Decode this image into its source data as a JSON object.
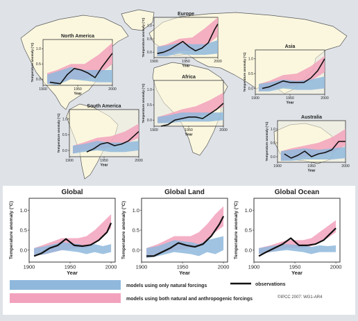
{
  "colors": {
    "natural": "#8fb8dc",
    "both": "#f2a2bc",
    "overlap": "#b58fbd",
    "observations": "#111111",
    "land": "#fbf7df",
    "ocean": "#dfe3e8"
  },
  "chart_data": [
    {
      "type": "line",
      "title": "North America",
      "xlabel": "Year",
      "ylabel": "Temperature anomaly (°C)",
      "xlim": [
        1900,
        2000
      ],
      "ylim": [
        -0.2,
        1.3
      ],
      "x_ticks": [
        "1900",
        "1950",
        "2000"
      ],
      "y_ticks": [
        "0.0",
        "0.5",
        "1.0"
      ],
      "observations": {
        "x": [
          1910,
          1925,
          1935,
          1945,
          1955,
          1965,
          1975,
          1985,
          1995,
          2000
        ],
        "y": [
          -0.1,
          -0.15,
          0.15,
          0.35,
          0.3,
          0.2,
          0.05,
          0.4,
          0.7,
          0.85
        ]
      },
      "natural_band": {
        "x": [
          1906,
          1920,
          1940,
          1960,
          1980,
          2000
        ],
        "lower": [
          -0.15,
          -0.2,
          0.0,
          -0.05,
          -0.1,
          -0.1
        ],
        "upper": [
          0.15,
          0.25,
          0.4,
          0.3,
          0.3,
          0.3
        ]
      },
      "combined_band": {
        "x": [
          1906,
          1920,
          1940,
          1960,
          1980,
          2000
        ],
        "lower": [
          -0.15,
          -0.15,
          0.0,
          0.0,
          0.15,
          0.5
        ],
        "upper": [
          0.2,
          0.3,
          0.5,
          0.5,
          0.8,
          1.2
        ]
      }
    },
    {
      "type": "line",
      "title": "Europe",
      "xlabel": "Year",
      "ylabel": "Temperature anomaly (°C)",
      "xlim": [
        1900,
        2000
      ],
      "ylim": [
        -0.2,
        1.3
      ],
      "x_ticks": [
        "1900",
        "1950",
        "2000"
      ],
      "y_ticks": [
        "0.0",
        "0.5",
        "1.0"
      ],
      "observations": {
        "x": [
          1905,
          1915,
          1925,
          1935,
          1945,
          1955,
          1965,
          1975,
          1985,
          1995,
          2000
        ],
        "y": [
          -0.05,
          0.0,
          0.1,
          0.25,
          0.4,
          0.2,
          0.05,
          0.15,
          0.35,
          0.85,
          1.05
        ]
      },
      "natural_band": {
        "x": [
          1905,
          1920,
          1940,
          1960,
          1980,
          2000
        ],
        "lower": [
          -0.15,
          -0.15,
          -0.05,
          -0.1,
          -0.1,
          -0.05
        ],
        "upper": [
          0.2,
          0.25,
          0.35,
          0.3,
          0.3,
          0.45
        ]
      },
      "combined_band": {
        "x": [
          1905,
          1920,
          1940,
          1960,
          1980,
          2000
        ],
        "lower": [
          -0.15,
          -0.1,
          0.05,
          0.05,
          0.2,
          0.6
        ],
        "upper": [
          0.2,
          0.3,
          0.5,
          0.55,
          0.9,
          1.3
        ]
      }
    },
    {
      "type": "line",
      "title": "Asia",
      "xlabel": "Year",
      "ylabel": "Temperature anomaly (°C)",
      "xlim": [
        1900,
        2000
      ],
      "ylim": [
        -0.2,
        1.3
      ],
      "x_ticks": [
        "1900",
        "1950",
        "2000"
      ],
      "y_ticks": [
        "0.0",
        "0.5",
        "1.0"
      ],
      "observations": {
        "x": [
          1910,
          1920,
          1930,
          1940,
          1950,
          1960,
          1970,
          1980,
          1990,
          2000
        ],
        "y": [
          0.0,
          0.05,
          0.15,
          0.25,
          0.2,
          0.2,
          0.2,
          0.35,
          0.6,
          1.0
        ]
      },
      "natural_band": {
        "x": [
          1905,
          1920,
          1940,
          1960,
          1980,
          2000
        ],
        "lower": [
          -0.1,
          -0.1,
          0.0,
          -0.05,
          -0.05,
          0.0
        ],
        "upper": [
          0.15,
          0.2,
          0.3,
          0.25,
          0.3,
          0.4
        ]
      },
      "combined_band": {
        "x": [
          1905,
          1920,
          1940,
          1960,
          1980,
          2000
        ],
        "lower": [
          -0.1,
          -0.05,
          0.05,
          0.1,
          0.25,
          0.55
        ],
        "upper": [
          0.15,
          0.25,
          0.45,
          0.5,
          0.75,
          1.1
        ]
      }
    },
    {
      "type": "line",
      "title": "Africa",
      "xlabel": "Year",
      "ylabel": "Temperature anomaly (°C)",
      "xlim": [
        1900,
        2000
      ],
      "ylim": [
        -0.2,
        1.3
      ],
      "x_ticks": [
        "1900",
        "1950",
        "2000"
      ],
      "y_ticks": [
        "0.0",
        "0.5",
        "1.0"
      ],
      "observations": {
        "x": [
          1910,
          1920,
          1930,
          1940,
          1950,
          1960,
          1970,
          1980,
          1990,
          2000
        ],
        "y": [
          -0.2,
          -0.15,
          0.0,
          0.05,
          0.1,
          0.1,
          0.05,
          0.2,
          0.35,
          0.55
        ]
      },
      "natural_band": {
        "x": [
          1905,
          1920,
          1940,
          1960,
          1980,
          2000
        ],
        "lower": [
          -0.1,
          -0.1,
          -0.05,
          -0.05,
          -0.05,
          0.0
        ],
        "upper": [
          0.1,
          0.15,
          0.25,
          0.25,
          0.25,
          0.25
        ]
      },
      "combined_band": {
        "x": [
          1905,
          1920,
          1940,
          1960,
          1980,
          2000
        ],
        "lower": [
          -0.1,
          -0.05,
          0.0,
          0.1,
          0.2,
          0.45
        ],
        "upper": [
          0.1,
          0.2,
          0.35,
          0.45,
          0.65,
          0.9
        ]
      }
    },
    {
      "type": "line",
      "title": "South America",
      "xlabel": "Year",
      "ylabel": "Temperature anomaly (°C)",
      "xlim": [
        1900,
        2000
      ],
      "ylim": [
        -0.2,
        1.3
      ],
      "x_ticks": [
        "1900",
        "1950",
        "2000"
      ],
      "y_ticks": [
        "0.0",
        "0.5",
        "1.0"
      ],
      "observations": {
        "x": [
          1925,
          1935,
          1945,
          1955,
          1965,
          1975,
          1985,
          1995,
          2000
        ],
        "y": [
          -0.05,
          0.05,
          0.2,
          0.25,
          0.15,
          0.2,
          0.3,
          0.5,
          0.6
        ]
      },
      "natural_band": {
        "x": [
          1905,
          1920,
          1940,
          1960,
          1980,
          2000
        ],
        "lower": [
          -0.1,
          -0.05,
          0.0,
          -0.05,
          -0.05,
          0.0
        ],
        "upper": [
          0.15,
          0.2,
          0.3,
          0.25,
          0.25,
          0.3
        ]
      },
      "combined_band": {
        "x": [
          1905,
          1920,
          1940,
          1960,
          1980,
          2000
        ],
        "lower": [
          -0.1,
          0.0,
          0.05,
          0.1,
          0.2,
          0.4
        ],
        "upper": [
          0.15,
          0.25,
          0.4,
          0.45,
          0.6,
          0.85
        ]
      }
    },
    {
      "type": "line",
      "title": "Australia",
      "xlabel": "Year",
      "ylabel": "Temperature anomaly (°C)",
      "xlim": [
        1900,
        2000
      ],
      "ylim": [
        -0.2,
        1.3
      ],
      "x_ticks": [
        "1900",
        "1950",
        "2000"
      ],
      "y_ticks": [
        "0.0",
        "0.5",
        "1.0"
      ],
      "observations": {
        "x": [
          1910,
          1920,
          1930,
          1940,
          1950,
          1960,
          1970,
          1980,
          1990,
          2000
        ],
        "y": [
          0.1,
          -0.05,
          0.05,
          0.2,
          0.0,
          0.1,
          0.15,
          0.25,
          0.55,
          0.55
        ]
      },
      "natural_band": {
        "x": [
          1905,
          1920,
          1940,
          1960,
          1980,
          2000
        ],
        "lower": [
          -0.15,
          -0.15,
          -0.1,
          -0.1,
          -0.1,
          -0.05
        ],
        "upper": [
          0.2,
          0.25,
          0.3,
          0.25,
          0.3,
          0.35
        ]
      },
      "combined_band": {
        "x": [
          1905,
          1920,
          1940,
          1960,
          1980,
          2000
        ],
        "lower": [
          -0.15,
          -0.1,
          0.0,
          0.05,
          0.15,
          0.4
        ],
        "upper": [
          0.2,
          0.3,
          0.4,
          0.5,
          0.7,
          1.0
        ]
      }
    },
    {
      "type": "line",
      "title": "Global",
      "xlabel": "Year",
      "ylabel": "Temperature anomaly (°C)",
      "xlim": [
        1900,
        2005
      ],
      "ylim": [
        -0.3,
        1.3
      ],
      "x_ticks": [
        "1900",
        "1950",
        "2000"
      ],
      "y_ticks": [
        "0.0",
        "0.5",
        "1.0"
      ],
      "observations": {
        "x": [
          1906,
          1915,
          1925,
          1935,
          1945,
          1955,
          1965,
          1975,
          1985,
          1995,
          2000
        ],
        "y": [
          -0.15,
          -0.08,
          0.05,
          0.12,
          0.28,
          0.12,
          0.1,
          0.13,
          0.25,
          0.45,
          0.68
        ]
      },
      "natural_band": {
        "x": [
          1906,
          1920,
          1940,
          1960,
          1970,
          1980,
          1990,
          2000
        ],
        "lower": [
          -0.15,
          -0.1,
          0.0,
          -0.05,
          -0.1,
          -0.05,
          -0.1,
          -0.05
        ],
        "upper": [
          0.05,
          0.1,
          0.2,
          0.15,
          0.1,
          0.15,
          0.1,
          0.15
        ]
      },
      "combined_band": {
        "x": [
          1906,
          1920,
          1940,
          1960,
          1970,
          1980,
          1990,
          2000
        ],
        "lower": [
          -0.15,
          -0.1,
          0.0,
          0.05,
          0.05,
          0.2,
          0.35,
          0.55
        ],
        "upper": [
          0.05,
          0.15,
          0.3,
          0.3,
          0.35,
          0.5,
          0.7,
          0.9
        ]
      }
    },
    {
      "type": "line",
      "title": "Global Land",
      "xlabel": "Year",
      "ylabel": "Temperature anomaly (°C)",
      "xlim": [
        1900,
        2005
      ],
      "ylim": [
        -0.3,
        1.3
      ],
      "x_ticks": [
        "1900",
        "1950",
        "2000"
      ],
      "y_ticks": [
        "0.0",
        "0.5",
        "1.0"
      ],
      "observations": {
        "x": [
          1906,
          1915,
          1925,
          1935,
          1945,
          1955,
          1965,
          1975,
          1985,
          1995,
          2000
        ],
        "y": [
          -0.15,
          -0.15,
          -0.05,
          0.05,
          0.18,
          0.12,
          0.08,
          0.15,
          0.35,
          0.65,
          0.85
        ]
      },
      "natural_band": {
        "x": [
          1906,
          1920,
          1940,
          1960,
          1970,
          1980,
          1990,
          2000
        ],
        "lower": [
          -0.2,
          -0.15,
          -0.05,
          -0.1,
          -0.15,
          -0.05,
          -0.1,
          0.0
        ],
        "upper": [
          0.05,
          0.1,
          0.25,
          0.2,
          0.15,
          0.25,
          0.3,
          0.35
        ]
      },
      "combined_band": {
        "x": [
          1906,
          1920,
          1940,
          1960,
          1970,
          1980,
          1990,
          2000
        ],
        "lower": [
          -0.2,
          -0.1,
          0.0,
          0.05,
          0.1,
          0.25,
          0.45,
          0.6
        ],
        "upper": [
          0.05,
          0.15,
          0.35,
          0.35,
          0.45,
          0.65,
          0.9,
          1.1
        ]
      }
    },
    {
      "type": "line",
      "title": "Global Ocean",
      "xlabel": "Year",
      "ylabel": "Temperature anomaly (°C)",
      "xlim": [
        1900,
        2005
      ],
      "ylim": [
        -0.3,
        1.3
      ],
      "x_ticks": [
        "1900",
        "1950",
        "2000"
      ],
      "y_ticks": [
        "0.0",
        "0.5",
        "1.0"
      ],
      "observations": {
        "x": [
          1906,
          1915,
          1925,
          1935,
          1945,
          1955,
          1965,
          1975,
          1985,
          1995,
          2000
        ],
        "y": [
          -0.15,
          -0.05,
          0.05,
          0.15,
          0.3,
          0.12,
          0.12,
          0.15,
          0.25,
          0.45,
          0.55
        ]
      },
      "natural_band": {
        "x": [
          1906,
          1920,
          1940,
          1960,
          1970,
          1980,
          1990,
          2000
        ],
        "lower": [
          -0.1,
          -0.05,
          0.0,
          -0.05,
          -0.1,
          -0.05,
          -0.05,
          -0.05
        ],
        "upper": [
          0.05,
          0.1,
          0.15,
          0.12,
          0.08,
          0.12,
          0.1,
          0.12
        ]
      },
      "combined_band": {
        "x": [
          1906,
          1920,
          1940,
          1960,
          1970,
          1980,
          1990,
          2000
        ],
        "lower": [
          -0.1,
          -0.05,
          0.05,
          0.05,
          0.1,
          0.2,
          0.3,
          0.45
        ],
        "upper": [
          0.05,
          0.12,
          0.25,
          0.25,
          0.3,
          0.45,
          0.6,
          0.75
        ]
      }
    }
  ],
  "legend": {
    "natural_label": "models using only natural forcings",
    "both_label": "models using both natural and anthropogenic forcings",
    "observations_label": "observations"
  },
  "credit": "©IPCC 2007: WG1-AR4"
}
